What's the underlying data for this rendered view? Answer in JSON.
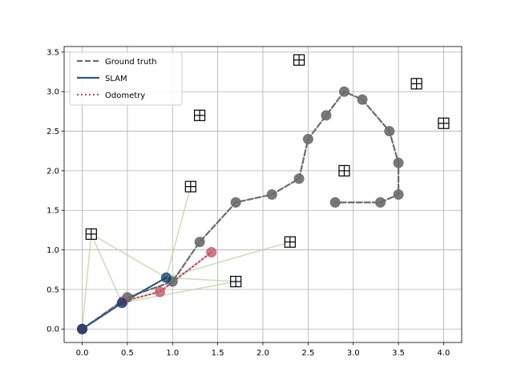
{
  "chart_data": {
    "type": "scatter",
    "title": "",
    "xlabel": "",
    "ylabel": "",
    "xlim": [
      -0.2,
      4.2
    ],
    "ylim": [
      -0.17,
      3.57
    ],
    "xticks": [
      0.0,
      0.5,
      1.0,
      1.5,
      2.0,
      2.5,
      3.0,
      3.5,
      4.0
    ],
    "yticks": [
      0.0,
      0.5,
      1.0,
      1.5,
      2.0,
      2.5,
      3.0,
      3.5
    ],
    "xtick_labels": [
      "0.0",
      "0.5",
      "1.0",
      "1.5",
      "2.0",
      "2.5",
      "3.0",
      "3.5",
      "4.0"
    ],
    "ytick_labels": [
      "0.0",
      "0.5",
      "1.0",
      "1.5",
      "2.0",
      "2.5",
      "3.0",
      "3.5"
    ],
    "grid": true,
    "legend_position": "top-left",
    "colors": {
      "ground_truth": "#6b6b6b",
      "slam": "#2d5a8a",
      "slam_marker": "#0d3a6b",
      "odometry": "#c05060",
      "observation_line": "#b8d8a0"
    },
    "series": [
      {
        "name": "Ground truth",
        "style": "dashed",
        "x": [
          0.0,
          0.5,
          1.0,
          1.3,
          1.7,
          2.1,
          2.4,
          2.5,
          2.7,
          2.9,
          3.1,
          3.4,
          3.5,
          3.5,
          3.3,
          2.8
        ],
        "y": [
          0.0,
          0.4,
          0.6,
          1.1,
          1.6,
          1.7,
          1.9,
          2.4,
          2.7,
          3.0,
          2.9,
          2.5,
          2.1,
          1.7,
          1.6,
          1.6
        ]
      },
      {
        "name": "SLAM",
        "style": "solid",
        "x": [
          0.0,
          0.44,
          0.93
        ],
        "y": [
          0.0,
          0.33,
          0.65
        ]
      },
      {
        "name": "Odometry",
        "style": "dotted",
        "x": [
          0.0,
          0.45,
          0.86,
          1.43
        ],
        "y": [
          0.0,
          0.35,
          0.47,
          0.97
        ]
      }
    ],
    "landmarks": {
      "x": [
        0.1,
        1.2,
        1.3,
        1.7,
        2.3,
        2.4,
        2.9,
        3.7,
        4.0
      ],
      "y": [
        1.2,
        1.8,
        2.7,
        0.6,
        1.1,
        3.4,
        2.0,
        3.1,
        2.6
      ]
    },
    "observations": [
      {
        "from": [
          0.0,
          0.0
        ],
        "to": [
          0.1,
          1.2
        ]
      },
      {
        "from": [
          0.44,
          0.33
        ],
        "to": [
          0.1,
          1.2
        ]
      },
      {
        "from": [
          0.93,
          0.65
        ],
        "to": [
          0.1,
          1.2
        ]
      },
      {
        "from": [
          0.44,
          0.33
        ],
        "to": [
          1.7,
          0.6
        ]
      },
      {
        "from": [
          0.93,
          0.65
        ],
        "to": [
          1.2,
          1.8
        ]
      },
      {
        "from": [
          0.93,
          0.65
        ],
        "to": [
          1.7,
          0.6
        ]
      },
      {
        "from": [
          0.93,
          0.65
        ],
        "to": [
          2.3,
          1.1
        ]
      }
    ]
  }
}
